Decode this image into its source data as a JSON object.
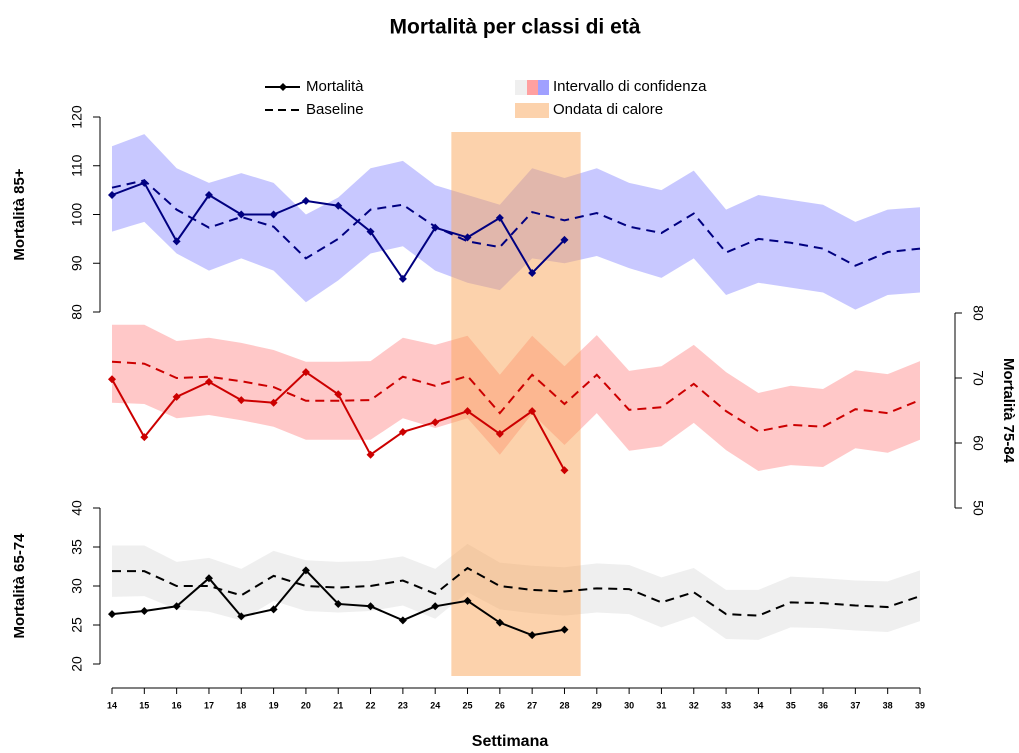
{
  "chart_data": {
    "type": "line",
    "title": "Mortalità per classi di età",
    "x_label": "Settimana",
    "x": [
      14,
      15,
      16,
      17,
      18,
      19,
      20,
      21,
      22,
      23,
      24,
      25,
      26,
      27,
      28,
      29,
      30,
      31,
      32,
      33,
      34,
      35,
      36,
      37,
      38,
      39
    ],
    "xticks": [
      14,
      15,
      16,
      17,
      18,
      19,
      20,
      21,
      22,
      23,
      24,
      25,
      26,
      27,
      28,
      29,
      30,
      31,
      32,
      33,
      34,
      35,
      36,
      37,
      38,
      39
    ],
    "xlim": [
      14,
      39
    ],
    "legend": {
      "mortality": "Mortalità",
      "baseline": "Baseline",
      "ci": "Intervallo di confidenza",
      "heatwave": "Ondata di calore"
    },
    "heatwave": {
      "from": 24.5,
      "to": 28.5,
      "color": "#faa55a"
    },
    "panels": [
      {
        "ylabel": "Mortalità 85+",
        "axis": "left",
        "ylim": [
          80,
          120
        ],
        "yticks": [
          80,
          90,
          100,
          110,
          120
        ],
        "color": "#000080",
        "band_color": "#c8c8ff",
        "mortality": [
          104,
          106.5,
          94.5,
          104,
          100,
          100,
          102.8,
          101.8,
          96.5,
          86.8,
          97.3,
          95.3,
          99.3,
          88,
          94.8,
          null,
          null,
          null,
          null,
          null,
          null,
          null,
          null,
          null,
          null,
          null
        ],
        "baseline": [
          105.5,
          107,
          101,
          97.3,
          99.5,
          97.5,
          91,
          95,
          101,
          102,
          97.5,
          94.5,
          93.3,
          100.5,
          98.8,
          100.3,
          97.5,
          96.2,
          100.2,
          92.2,
          95,
          94.2,
          93,
          89.5,
          92.3,
          93
        ],
        "ci_upper": [
          114,
          116.5,
          109.5,
          106.5,
          108.5,
          106.5,
          100,
          103.5,
          109.5,
          111,
          106,
          104,
          102,
          109.5,
          107.5,
          109.5,
          106.5,
          105,
          109,
          101,
          104,
          103,
          102,
          98.5,
          101,
          101.5
        ],
        "ci_lower": [
          96.5,
          98.5,
          92,
          88.5,
          91,
          88.5,
          82,
          86.5,
          92,
          93.5,
          88.5,
          86,
          84.5,
          91,
          90,
          91.5,
          89,
          87,
          91,
          83.5,
          86,
          85,
          84,
          80.5,
          83.5,
          84
        ]
      },
      {
        "ylabel": "Mortalità 75-84",
        "axis": "right",
        "ylim": [
          50,
          80
        ],
        "yticks": [
          50,
          60,
          70,
          80
        ],
        "color": "#cc0000",
        "band_color": "#ffc8c8",
        "mortality": [
          69.8,
          60.9,
          67.1,
          69.4,
          66.6,
          66.2,
          70.9,
          67.5,
          58.2,
          61.7,
          63.2,
          64.9,
          61.4,
          64.9,
          55.8,
          null,
          null,
          null,
          null,
          null,
          null,
          null,
          null,
          null,
          null,
          null
        ],
        "baseline": [
          72.5,
          72.2,
          70,
          70.2,
          69.5,
          68.6,
          66.5,
          66.5,
          66.6,
          70.2,
          68.8,
          70.3,
          64.6,
          70.5,
          66,
          70.5,
          65.1,
          65.5,
          69.1,
          64.9,
          61.8,
          62.8,
          62.5,
          65.2,
          64.6,
          66.6
        ],
        "ci_upper": [
          78.2,
          78.2,
          75.7,
          76.2,
          75.4,
          74.3,
          72.5,
          72.5,
          72.6,
          76.2,
          75.1,
          76.5,
          70.5,
          76.5,
          71.8,
          76.6,
          71.1,
          71.8,
          75.1,
          70.9,
          67.7,
          68.8,
          68.3,
          71.2,
          70.6,
          72.6
        ],
        "ci_lower": [
          66.2,
          66,
          63.8,
          64.3,
          63.5,
          62.5,
          60.5,
          60.5,
          60.5,
          63.8,
          62.3,
          63.8,
          58.2,
          64.5,
          59.7,
          64.6,
          58.8,
          59.5,
          63.1,
          58.9,
          55.7,
          56.6,
          56.3,
          59.2,
          58.5,
          60.5
        ]
      },
      {
        "ylabel": "Mortalità 65-74",
        "axis": "left",
        "ylim": [
          20,
          40
        ],
        "yticks": [
          20,
          25,
          30,
          35,
          40
        ],
        "color": "#000000",
        "band_color": "#efefef",
        "mortality": [
          26.4,
          26.8,
          27.4,
          31,
          26.1,
          27,
          32,
          27.7,
          27.4,
          25.6,
          27.4,
          28.1,
          25.3,
          23.7,
          24.4,
          null,
          null,
          null,
          null,
          null,
          null,
          null,
          null,
          null,
          null,
          null
        ],
        "baseline": [
          31.9,
          31.9,
          30,
          30,
          28.8,
          31.3,
          30,
          29.8,
          30,
          30.7,
          29,
          32.3,
          30,
          29.5,
          29.3,
          29.7,
          29.6,
          27.9,
          29.2,
          26.4,
          26.2,
          27.9,
          27.8,
          27.5,
          27.3,
          28.7
        ],
        "ci_upper": [
          35.2,
          35.2,
          33.1,
          33.6,
          32.2,
          34.5,
          33.3,
          33.1,
          33.2,
          33.8,
          32.2,
          35.4,
          33,
          32.6,
          32.4,
          32.9,
          32.7,
          31.1,
          32.3,
          29.5,
          29.5,
          31.2,
          31,
          30.7,
          30.6,
          32
        ],
        "ci_lower": [
          28.6,
          28.7,
          27,
          26.7,
          25.6,
          28.1,
          26.8,
          26.6,
          26.8,
          27.5,
          25.8,
          29.2,
          27,
          26.5,
          26.2,
          26.6,
          26.4,
          24.7,
          26.1,
          23.2,
          23.1,
          24.7,
          24.6,
          24.3,
          24.1,
          25.5
        ]
      }
    ]
  }
}
